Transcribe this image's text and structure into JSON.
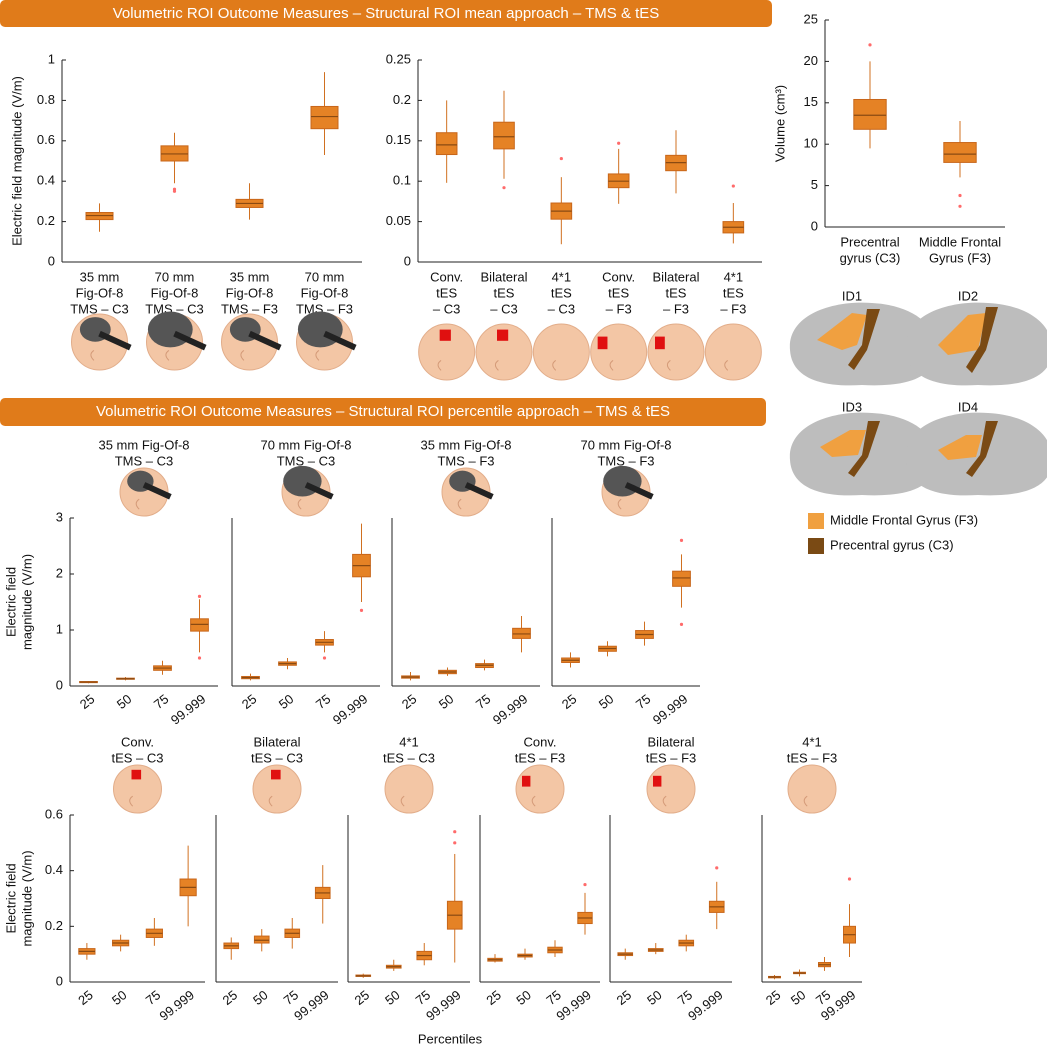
{
  "headers": [
    "Volumetric ROI Outcome Measures – Structural ROI mean approach – TMS & tES",
    "Volumetric ROI Outcome Measures – Structural ROI percentile approach – TMS & tES"
  ],
  "x_label_shared": "Percentiles",
  "brain_panel": {
    "ids": [
      "ID1",
      "ID2",
      "ID3",
      "ID4"
    ],
    "legend": [
      {
        "label": "Middle Frontal Gyrus (F3)",
        "color": "#f0a040"
      },
      {
        "label": "Precentral gyrus (C3)",
        "color": "#7a4a14"
      }
    ]
  },
  "chart_data": [
    {
      "type": "box",
      "color": "#e58225",
      "ylabel": "Electric field magnitude (V/m)",
      "ylim": [
        0,
        1
      ],
      "yticks": [
        0,
        0.2,
        0.4,
        0.6,
        0.8,
        1
      ],
      "categories": [
        [
          "35 mm",
          "Fig-Of-8",
          "TMS – C3"
        ],
        [
          "70 mm",
          "Fig-Of-8",
          "TMS – C3"
        ],
        [
          "35 mm",
          "Fig-Of-8",
          "TMS – F3"
        ],
        [
          "70 mm",
          "Fig-Of-8",
          "TMS – F3"
        ]
      ],
      "boxes": [
        {
          "min": 0.15,
          "q1": 0.21,
          "median": 0.23,
          "q3": 0.245,
          "max": 0.29
        },
        {
          "min": 0.39,
          "q1": 0.5,
          "median": 0.535,
          "q3": 0.575,
          "max": 0.64,
          "outliers": [
            0.36,
            0.35
          ]
        },
        {
          "min": 0.21,
          "q1": 0.27,
          "median": 0.29,
          "q3": 0.31,
          "max": 0.39
        },
        {
          "min": 0.53,
          "q1": 0.66,
          "median": 0.72,
          "q3": 0.77,
          "max": 0.94
        }
      ]
    },
    {
      "type": "box",
      "color": "#e58225",
      "ylim": [
        0,
        0.25
      ],
      "yticks": [
        0,
        0.05,
        0.1,
        0.15,
        0.2,
        0.25
      ],
      "categories": [
        [
          "Conv.",
          "tES",
          "– C3"
        ],
        [
          "Bilateral",
          "tES",
          "– C3"
        ],
        [
          "4*1",
          "tES",
          "– C3"
        ],
        [
          "Conv.",
          "tES",
          "– F3"
        ],
        [
          "Bilateral",
          "tES",
          "– F3"
        ],
        [
          "4*1",
          "tES",
          "– F3"
        ]
      ],
      "boxes": [
        {
          "min": 0.098,
          "q1": 0.133,
          "median": 0.145,
          "q3": 0.16,
          "max": 0.2
        },
        {
          "min": 0.103,
          "q1": 0.14,
          "median": 0.155,
          "q3": 0.173,
          "max": 0.212,
          "outliers": [
            0.092
          ]
        },
        {
          "min": 0.022,
          "q1": 0.053,
          "median": 0.063,
          "q3": 0.073,
          "max": 0.105,
          "outliers": [
            0.128
          ]
        },
        {
          "min": 0.072,
          "q1": 0.092,
          "median": 0.1,
          "q3": 0.109,
          "max": 0.14,
          "outliers": [
            0.147
          ]
        },
        {
          "min": 0.085,
          "q1": 0.113,
          "median": 0.123,
          "q3": 0.132,
          "max": 0.163
        },
        {
          "min": 0.023,
          "q1": 0.036,
          "median": 0.043,
          "q3": 0.05,
          "max": 0.073,
          "outliers": [
            0.094
          ]
        }
      ]
    },
    {
      "type": "box",
      "color": "#e58225",
      "ylabel": "Volume (cm³)",
      "ylim": [
        0,
        25
      ],
      "yticks": [
        0,
        5,
        10,
        15,
        20,
        25
      ],
      "categories": [
        [
          "Precentral",
          "gyrus (C3)"
        ],
        [
          "Middle Frontal",
          "Gyrus (F3)"
        ]
      ],
      "boxes": [
        {
          "min": 9.5,
          "q1": 11.8,
          "median": 13.5,
          "q3": 15.4,
          "max": 20,
          "outliers": [
            22
          ]
        },
        {
          "min": 6,
          "q1": 7.8,
          "median": 8.8,
          "q3": 10.2,
          "max": 12.8,
          "outliers": [
            3.8,
            2.5
          ]
        }
      ]
    },
    {
      "type": "box",
      "color": "#e58225",
      "title": [
        "35 mm Fig-Of-8",
        "TMS – C3"
      ],
      "ylabel": [
        "Electric field",
        "magnitude (V/m)"
      ],
      "ylim": [
        0,
        3
      ],
      "yticks": [
        0,
        1,
        2,
        3
      ],
      "categories": [
        "25",
        "50",
        "75",
        "99.999"
      ],
      "boxes": [
        {
          "min": 0.05,
          "q1": 0.06,
          "median": 0.07,
          "q3": 0.08,
          "max": 0.09
        },
        {
          "min": 0.1,
          "q1": 0.12,
          "median": 0.13,
          "q3": 0.14,
          "max": 0.16
        },
        {
          "min": 0.2,
          "q1": 0.28,
          "median": 0.32,
          "q3": 0.36,
          "max": 0.45
        },
        {
          "min": 0.6,
          "q1": 0.98,
          "median": 1.1,
          "q3": 1.2,
          "max": 1.55,
          "outliers": [
            0.5,
            1.6
          ]
        }
      ]
    },
    {
      "type": "box",
      "color": "#e58225",
      "title": [
        "70 mm Fig-Of-8",
        "TMS – C3"
      ],
      "ylim": [
        0,
        3
      ],
      "categories": [
        "25",
        "50",
        "75",
        "99.999"
      ],
      "boxes": [
        {
          "min": 0.1,
          "q1": 0.13,
          "median": 0.15,
          "q3": 0.17,
          "max": 0.22
        },
        {
          "min": 0.3,
          "q1": 0.37,
          "median": 0.4,
          "q3": 0.43,
          "max": 0.5
        },
        {
          "min": 0.6,
          "q1": 0.73,
          "median": 0.78,
          "q3": 0.83,
          "max": 0.98,
          "outliers": [
            0.5
          ]
        },
        {
          "min": 1.5,
          "q1": 1.95,
          "median": 2.15,
          "q3": 2.35,
          "max": 2.9,
          "outliers": [
            1.35
          ]
        }
      ]
    },
    {
      "type": "box",
      "color": "#e58225",
      "title": [
        "35 mm Fig-Of-8",
        "TMS – F3"
      ],
      "ylim": [
        0,
        3
      ],
      "categories": [
        "25",
        "50",
        "75",
        "99.999"
      ],
      "boxes": [
        {
          "min": 0.1,
          "q1": 0.14,
          "median": 0.16,
          "q3": 0.18,
          "max": 0.25
        },
        {
          "min": 0.18,
          "q1": 0.22,
          "median": 0.25,
          "q3": 0.28,
          "max": 0.33
        },
        {
          "min": 0.28,
          "q1": 0.33,
          "median": 0.37,
          "q3": 0.4,
          "max": 0.47
        },
        {
          "min": 0.6,
          "q1": 0.85,
          "median": 0.93,
          "q3": 1.03,
          "max": 1.25
        }
      ]
    },
    {
      "type": "box",
      "color": "#e58225",
      "title": [
        "70 mm Fig-Of-8",
        "TMS – F3"
      ],
      "ylim": [
        0,
        3
      ],
      "categories": [
        "25",
        "50",
        "75",
        "99.999"
      ],
      "boxes": [
        {
          "min": 0.33,
          "q1": 0.42,
          "median": 0.46,
          "q3": 0.5,
          "max": 0.6
        },
        {
          "min": 0.53,
          "q1": 0.62,
          "median": 0.67,
          "q3": 0.71,
          "max": 0.8
        },
        {
          "min": 0.72,
          "q1": 0.85,
          "median": 0.92,
          "q3": 0.99,
          "max": 1.15
        },
        {
          "min": 1.4,
          "q1": 1.78,
          "median": 1.93,
          "q3": 2.05,
          "max": 2.35,
          "outliers": [
            1.1,
            2.6
          ]
        }
      ]
    },
    {
      "type": "box",
      "color": "#e58225",
      "title": [
        "Conv.",
        "tES – C3"
      ],
      "ylabel": [
        "Electric field",
        "magnitude (V/m)"
      ],
      "ylim": [
        0,
        0.6
      ],
      "yticks": [
        0,
        0.2,
        0.4,
        0.6
      ],
      "categories": [
        "25",
        "50",
        "75",
        "99.999"
      ],
      "boxes": [
        {
          "min": 0.08,
          "q1": 0.1,
          "median": 0.11,
          "q3": 0.12,
          "max": 0.14
        },
        {
          "min": 0.11,
          "q1": 0.13,
          "median": 0.14,
          "q3": 0.15,
          "max": 0.17
        },
        {
          "min": 0.13,
          "q1": 0.16,
          "median": 0.175,
          "q3": 0.19,
          "max": 0.23
        },
        {
          "min": 0.2,
          "q1": 0.31,
          "median": 0.34,
          "q3": 0.37,
          "max": 0.49
        }
      ]
    },
    {
      "type": "box",
      "color": "#e58225",
      "title": [
        "Bilateral",
        "tES – C3"
      ],
      "ylim": [
        0,
        0.6
      ],
      "categories": [
        "25",
        "50",
        "75",
        "99.999"
      ],
      "boxes": [
        {
          "min": 0.08,
          "q1": 0.12,
          "median": 0.13,
          "q3": 0.14,
          "max": 0.16
        },
        {
          "min": 0.11,
          "q1": 0.14,
          "median": 0.15,
          "q3": 0.165,
          "max": 0.19
        },
        {
          "min": 0.12,
          "q1": 0.16,
          "median": 0.175,
          "q3": 0.19,
          "max": 0.23
        },
        {
          "min": 0.21,
          "q1": 0.3,
          "median": 0.32,
          "q3": 0.34,
          "max": 0.42
        }
      ]
    },
    {
      "type": "box",
      "color": "#e58225",
      "title": [
        "4*1",
        "tES – C3"
      ],
      "ylim": [
        0,
        0.6
      ],
      "categories": [
        "25",
        "50",
        "75",
        "99.999"
      ],
      "boxes": [
        {
          "min": 0.015,
          "q1": 0.02,
          "median": 0.022,
          "q3": 0.025,
          "max": 0.03
        },
        {
          "min": 0.04,
          "q1": 0.05,
          "median": 0.055,
          "q3": 0.06,
          "max": 0.08
        },
        {
          "min": 0.06,
          "q1": 0.08,
          "median": 0.095,
          "q3": 0.11,
          "max": 0.14
        },
        {
          "min": 0.07,
          "q1": 0.19,
          "median": 0.24,
          "q3": 0.29,
          "max": 0.46,
          "outliers": [
            0.5,
            0.54
          ]
        }
      ]
    },
    {
      "type": "box",
      "color": "#e58225",
      "title": [
        "Conv.",
        "tES – F3"
      ],
      "ylim": [
        0,
        0.6
      ],
      "categories": [
        "25",
        "50",
        "75",
        "99.999"
      ],
      "boxes": [
        {
          "min": 0.07,
          "q1": 0.075,
          "median": 0.08,
          "q3": 0.085,
          "max": 0.1
        },
        {
          "min": 0.08,
          "q1": 0.09,
          "median": 0.095,
          "q3": 0.1,
          "max": 0.12
        },
        {
          "min": 0.09,
          "q1": 0.105,
          "median": 0.115,
          "q3": 0.125,
          "max": 0.15
        },
        {
          "min": 0.17,
          "q1": 0.21,
          "median": 0.23,
          "q3": 0.25,
          "max": 0.32,
          "outliers": [
            0.35
          ]
        }
      ]
    },
    {
      "type": "box",
      "color": "#e58225",
      "title": [
        "Bilateral",
        "tES – F3"
      ],
      "ylim": [
        0,
        0.6
      ],
      "categories": [
        "25",
        "50",
        "75",
        "99.999"
      ],
      "boxes": [
        {
          "min": 0.08,
          "q1": 0.095,
          "median": 0.1,
          "q3": 0.105,
          "max": 0.12
        },
        {
          "min": 0.1,
          "q1": 0.11,
          "median": 0.115,
          "q3": 0.12,
          "max": 0.14
        },
        {
          "min": 0.11,
          "q1": 0.13,
          "median": 0.14,
          "q3": 0.15,
          "max": 0.17
        },
        {
          "min": 0.19,
          "q1": 0.25,
          "median": 0.27,
          "q3": 0.29,
          "max": 0.36,
          "outliers": [
            0.41
          ]
        }
      ]
    },
    {
      "type": "box",
      "color": "#e58225",
      "title": [
        "4*1",
        "tES – F3"
      ],
      "ylim": [
        0,
        0.6
      ],
      "categories": [
        "25",
        "50",
        "75",
        "99.999"
      ],
      "boxes": [
        {
          "min": 0.01,
          "q1": 0.015,
          "median": 0.018,
          "q3": 0.02,
          "max": 0.025
        },
        {
          "min": 0.02,
          "q1": 0.03,
          "median": 0.032,
          "q3": 0.035,
          "max": 0.045
        },
        {
          "min": 0.04,
          "q1": 0.055,
          "median": 0.062,
          "q3": 0.07,
          "max": 0.09
        },
        {
          "min": 0.09,
          "q1": 0.14,
          "median": 0.17,
          "q3": 0.2,
          "max": 0.28,
          "outliers": [
            0.37
          ]
        }
      ]
    }
  ]
}
